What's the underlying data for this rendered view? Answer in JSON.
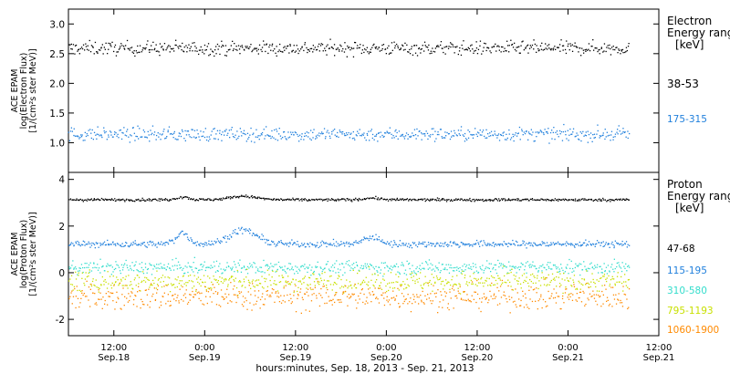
{
  "xlabel": "hours:minutes, Sep. 18, 2013 - Sep. 21, 2013",
  "x_ticks": [
    {
      "time": "12:00",
      "date": "Sep.18",
      "t": 12
    },
    {
      "time": "0:00",
      "date": "Sep.19",
      "t": 24
    },
    {
      "time": "12:00",
      "date": "Sep.19",
      "t": 36
    },
    {
      "time": "0:00",
      "date": "Sep.20",
      "t": 48
    },
    {
      "time": "12:00",
      "date": "Sep.20",
      "t": 60
    },
    {
      "time": "0:00",
      "date": "Sep.21",
      "t": 72
    },
    {
      "time": "12:00",
      "date": "Sep.21",
      "t": 84
    }
  ],
  "x_range_hours": [
    6,
    84
  ],
  "data_end_hour": 80,
  "chart_data": [
    {
      "type": "scatter",
      "name": "electron",
      "ylabel_lines": [
        "ACE EPAM",
        "log(Electron Flux)",
        "[1/(cm²s ster MeV)]"
      ],
      "ylim": [
        0.5,
        3.25
      ],
      "yticks": [
        1.0,
        1.5,
        2.0,
        2.5,
        3.0
      ],
      "ytick_labels": [
        "1.0",
        "1.5",
        "2.0",
        "2.5",
        "3.0"
      ],
      "legend_title": [
        "Electron",
        "Energy ranges",
        "[keV]"
      ],
      "series": [
        {
          "name": "38-53",
          "color": "#000000",
          "level": 2.6,
          "noise": 0.08
        },
        {
          "name": "175-315",
          "color": "#1f7fdc",
          "level": 1.15,
          "noise": 0.08
        }
      ]
    },
    {
      "type": "scatter",
      "name": "proton",
      "ylabel_lines": [
        "ACE EPAM",
        "log(Proton Flux)",
        "[1/(cm²s ster MeV)]"
      ],
      "ylim": [
        -2.7,
        4.3
      ],
      "yticks": [
        -2,
        0,
        2,
        4
      ],
      "ytick_labels": [
        "-2",
        "0",
        "2",
        "4"
      ],
      "legend_title": [
        "Proton",
        "Energy ranges",
        "[keV]"
      ],
      "series": [
        {
          "name": "47-68",
          "color": "#000000",
          "level": 3.15,
          "noise": 0.04
        },
        {
          "name": "115-195",
          "color": "#1f7fdc",
          "level": 1.25,
          "noise": 0.1
        },
        {
          "name": "310-580",
          "color": "#33ddcc",
          "level": 0.25,
          "noise": 0.2
        },
        {
          "name": "795-1193",
          "color": "#c8e000",
          "level": -0.35,
          "noise": 0.3
        },
        {
          "name": "1060-1900",
          "color": "#ff8a00",
          "level": -1.0,
          "noise": 0.4
        }
      ]
    }
  ]
}
